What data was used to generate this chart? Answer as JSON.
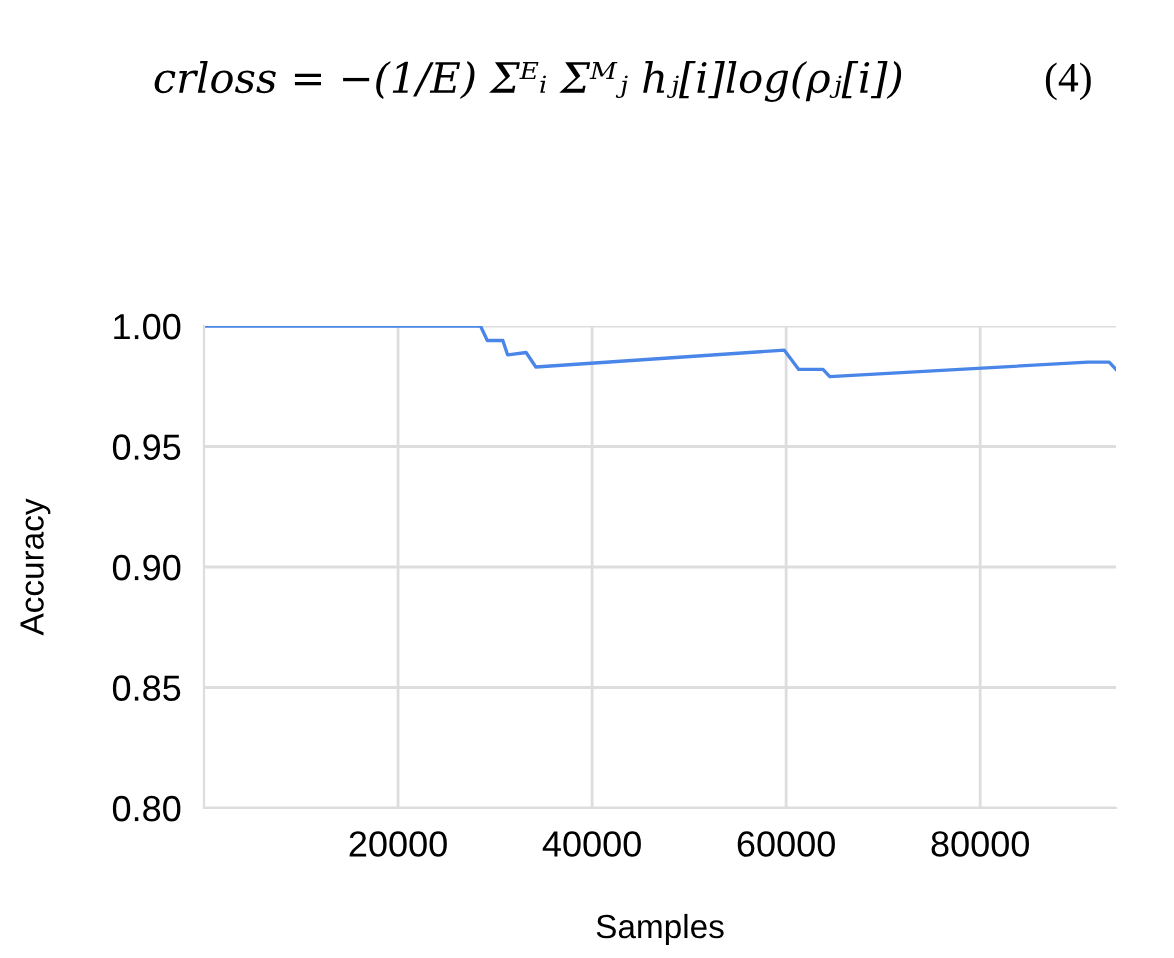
{
  "chart_data": {
    "type": "line",
    "annotations": [
      "crloss = −(1/E) Σᴱᵢ Σᴹⱼ hⱼ[i]log(ρⱼ[i])",
      "(4)"
    ],
    "xlabel": "Samples",
    "ylabel": "Accuracy",
    "x": [
      0,
      28500,
      29200,
      30800,
      31300,
      33200,
      34200,
      59800,
      61300,
      63800,
      64500,
      91100,
      93300,
      94000
    ],
    "series": [
      {
        "color": "#4a86e8",
        "values": [
          1.0,
          1.0,
          0.994,
          0.994,
          0.988,
          0.989,
          0.983,
          0.99,
          0.982,
          0.982,
          0.979,
          0.985,
          0.985,
          0.982
        ]
      }
    ],
    "xlim": [
      0,
      94000
    ],
    "ylim": [
      0.8,
      1.0
    ],
    "xticks": [
      20000,
      40000,
      60000,
      80000
    ],
    "yticks": [
      {
        "value": 0.8,
        "label": "0.80"
      },
      {
        "value": 0.85,
        "label": "0.85"
      },
      {
        "value": 0.9,
        "label": "0.90"
      },
      {
        "value": 0.95,
        "label": "0.95"
      },
      {
        "value": 1.0,
        "label": "1.00"
      }
    ],
    "grid": true,
    "marker": "none",
    "line_style": "solid"
  }
}
